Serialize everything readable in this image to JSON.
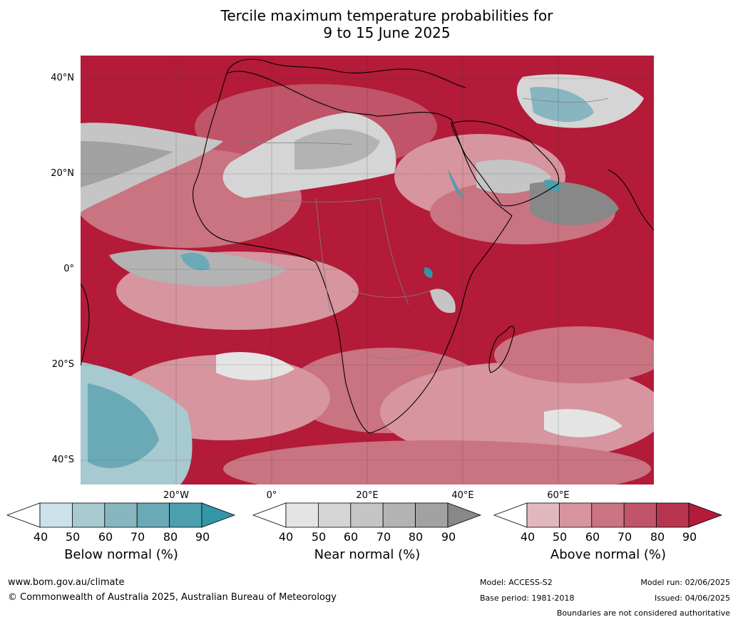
{
  "title_line1": "Tercile maximum temperature probabilities for",
  "title_line2": "9 to 15 June 2025",
  "lat_labels": [
    "40°N",
    "20°N",
    "0°",
    "20°S",
    "40°S"
  ],
  "lon_labels": [
    "20°W",
    "0°",
    "20°E",
    "40°E",
    "60°E"
  ],
  "colorbars": [
    {
      "title": "Below normal (%)",
      "ticks": [
        "40",
        "50",
        "60",
        "70",
        "80",
        "90"
      ],
      "colors": [
        "#ffffff",
        "#cae2e8",
        "#a7c9d0",
        "#87b6c0",
        "#6aaab7",
        "#4b9fae",
        "#3396a8"
      ]
    },
    {
      "title": "Near normal (%)",
      "ticks": [
        "40",
        "50",
        "60",
        "70",
        "80",
        "90"
      ],
      "colors": [
        "#ffffff",
        "#e4e4e4",
        "#d5d5d5",
        "#c5c5c5",
        "#b3b3b3",
        "#a2a2a2",
        "#888888"
      ]
    },
    {
      "title": "Above normal (%)",
      "ticks": [
        "40",
        "50",
        "60",
        "70",
        "80",
        "90"
      ],
      "colors": [
        "#ffffff",
        "#e2b8bf",
        "#d6959f",
        "#ca7381",
        "#c05468",
        "#b83550",
        "#b31b38"
      ]
    }
  ],
  "footer": {
    "website": "www.bom.gov.au/climate",
    "copyright": "© Commonwealth of Australia 2025, Australian Bureau of Meteorology",
    "model": "Model: ACCESS-S2",
    "base_period": "Base period: 1981-2018",
    "model_run": "Model run: 02/06/2025",
    "issued": "Issued: 04/06/2025",
    "disclaimer": "Boundaries are not considered authoritative"
  }
}
